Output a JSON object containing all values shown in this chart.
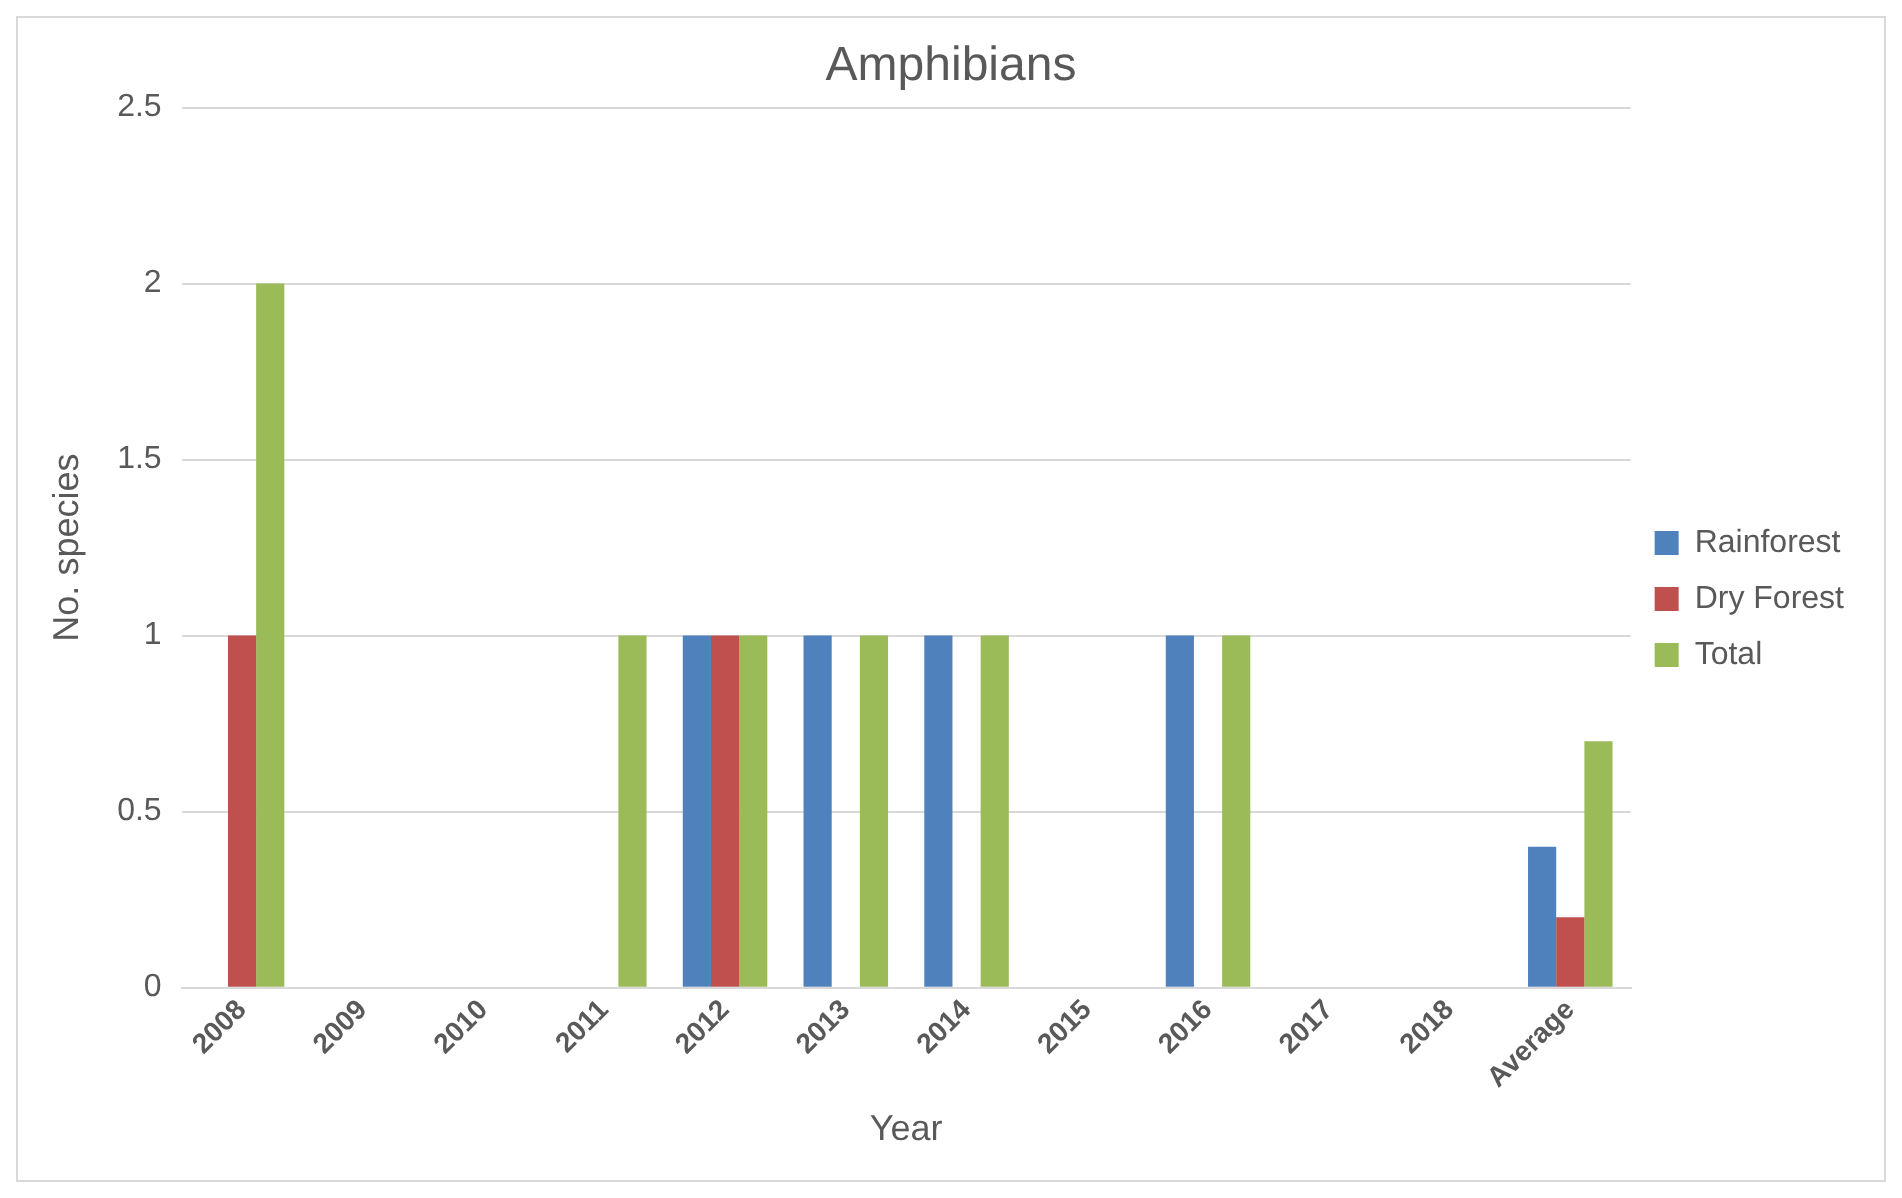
{
  "chart_data": {
    "type": "bar",
    "title": "Amphibians",
    "xlabel": "Year",
    "ylabel": "No. species",
    "categories": [
      "2008",
      "2009",
      "2010",
      "2011",
      "2012",
      "2013",
      "2014",
      "2015",
      "2016",
      "2017",
      "2018",
      "Average"
    ],
    "series": [
      {
        "name": "Rainforest",
        "color": "#4f81bd",
        "values": [
          0,
          0,
          0,
          0,
          1,
          1,
          1,
          0,
          1,
          0,
          0,
          0.4
        ]
      },
      {
        "name": "Dry Forest",
        "color": "#c0504d",
        "values": [
          1,
          0,
          0,
          0,
          1,
          0,
          0,
          0,
          0,
          0,
          0,
          0.2
        ]
      },
      {
        "name": "Total",
        "color": "#9bbb59",
        "values": [
          2,
          0,
          0,
          1,
          1,
          1,
          1,
          0,
          1,
          0,
          0,
          0.7
        ]
      }
    ],
    "ylim": [
      0,
      2.5
    ],
    "yticks": [
      0,
      0.5,
      1,
      1.5,
      2,
      2.5
    ],
    "grid": "y",
    "legend": "right"
  }
}
